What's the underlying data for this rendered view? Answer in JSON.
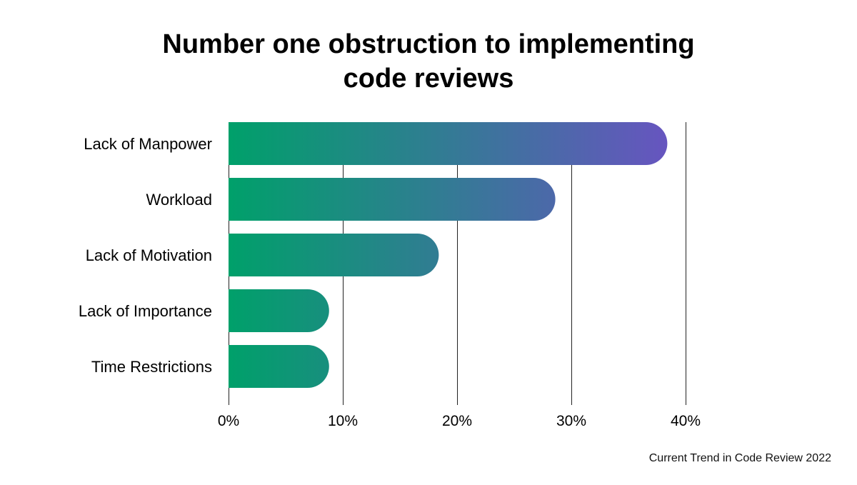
{
  "chart_data": {
    "type": "bar",
    "orientation": "horizontal",
    "title_lines": [
      "Number one obstruction to implementing",
      "code reviews"
    ],
    "categories": [
      "Lack of Manpower",
      "Workload",
      "Lack of Motivation",
      "Lack of Importance",
      "Time Restrictions"
    ],
    "values": [
      38.4,
      28.6,
      18.4,
      8.8,
      8.8
    ],
    "unit": "%",
    "xlim": [
      0,
      40
    ],
    "x_ticks": [
      0,
      10,
      20,
      30,
      40
    ],
    "x_tick_labels": [
      "0%",
      "10%",
      "20%",
      "30%",
      "40%"
    ],
    "grid": true,
    "legend": "none",
    "colors": {
      "gradient_start": "#00a06a",
      "gradient_end": "#6b52c3",
      "gridline": "#222222"
    }
  },
  "footer": {
    "source": "Current Trend in Code Review 2022"
  }
}
